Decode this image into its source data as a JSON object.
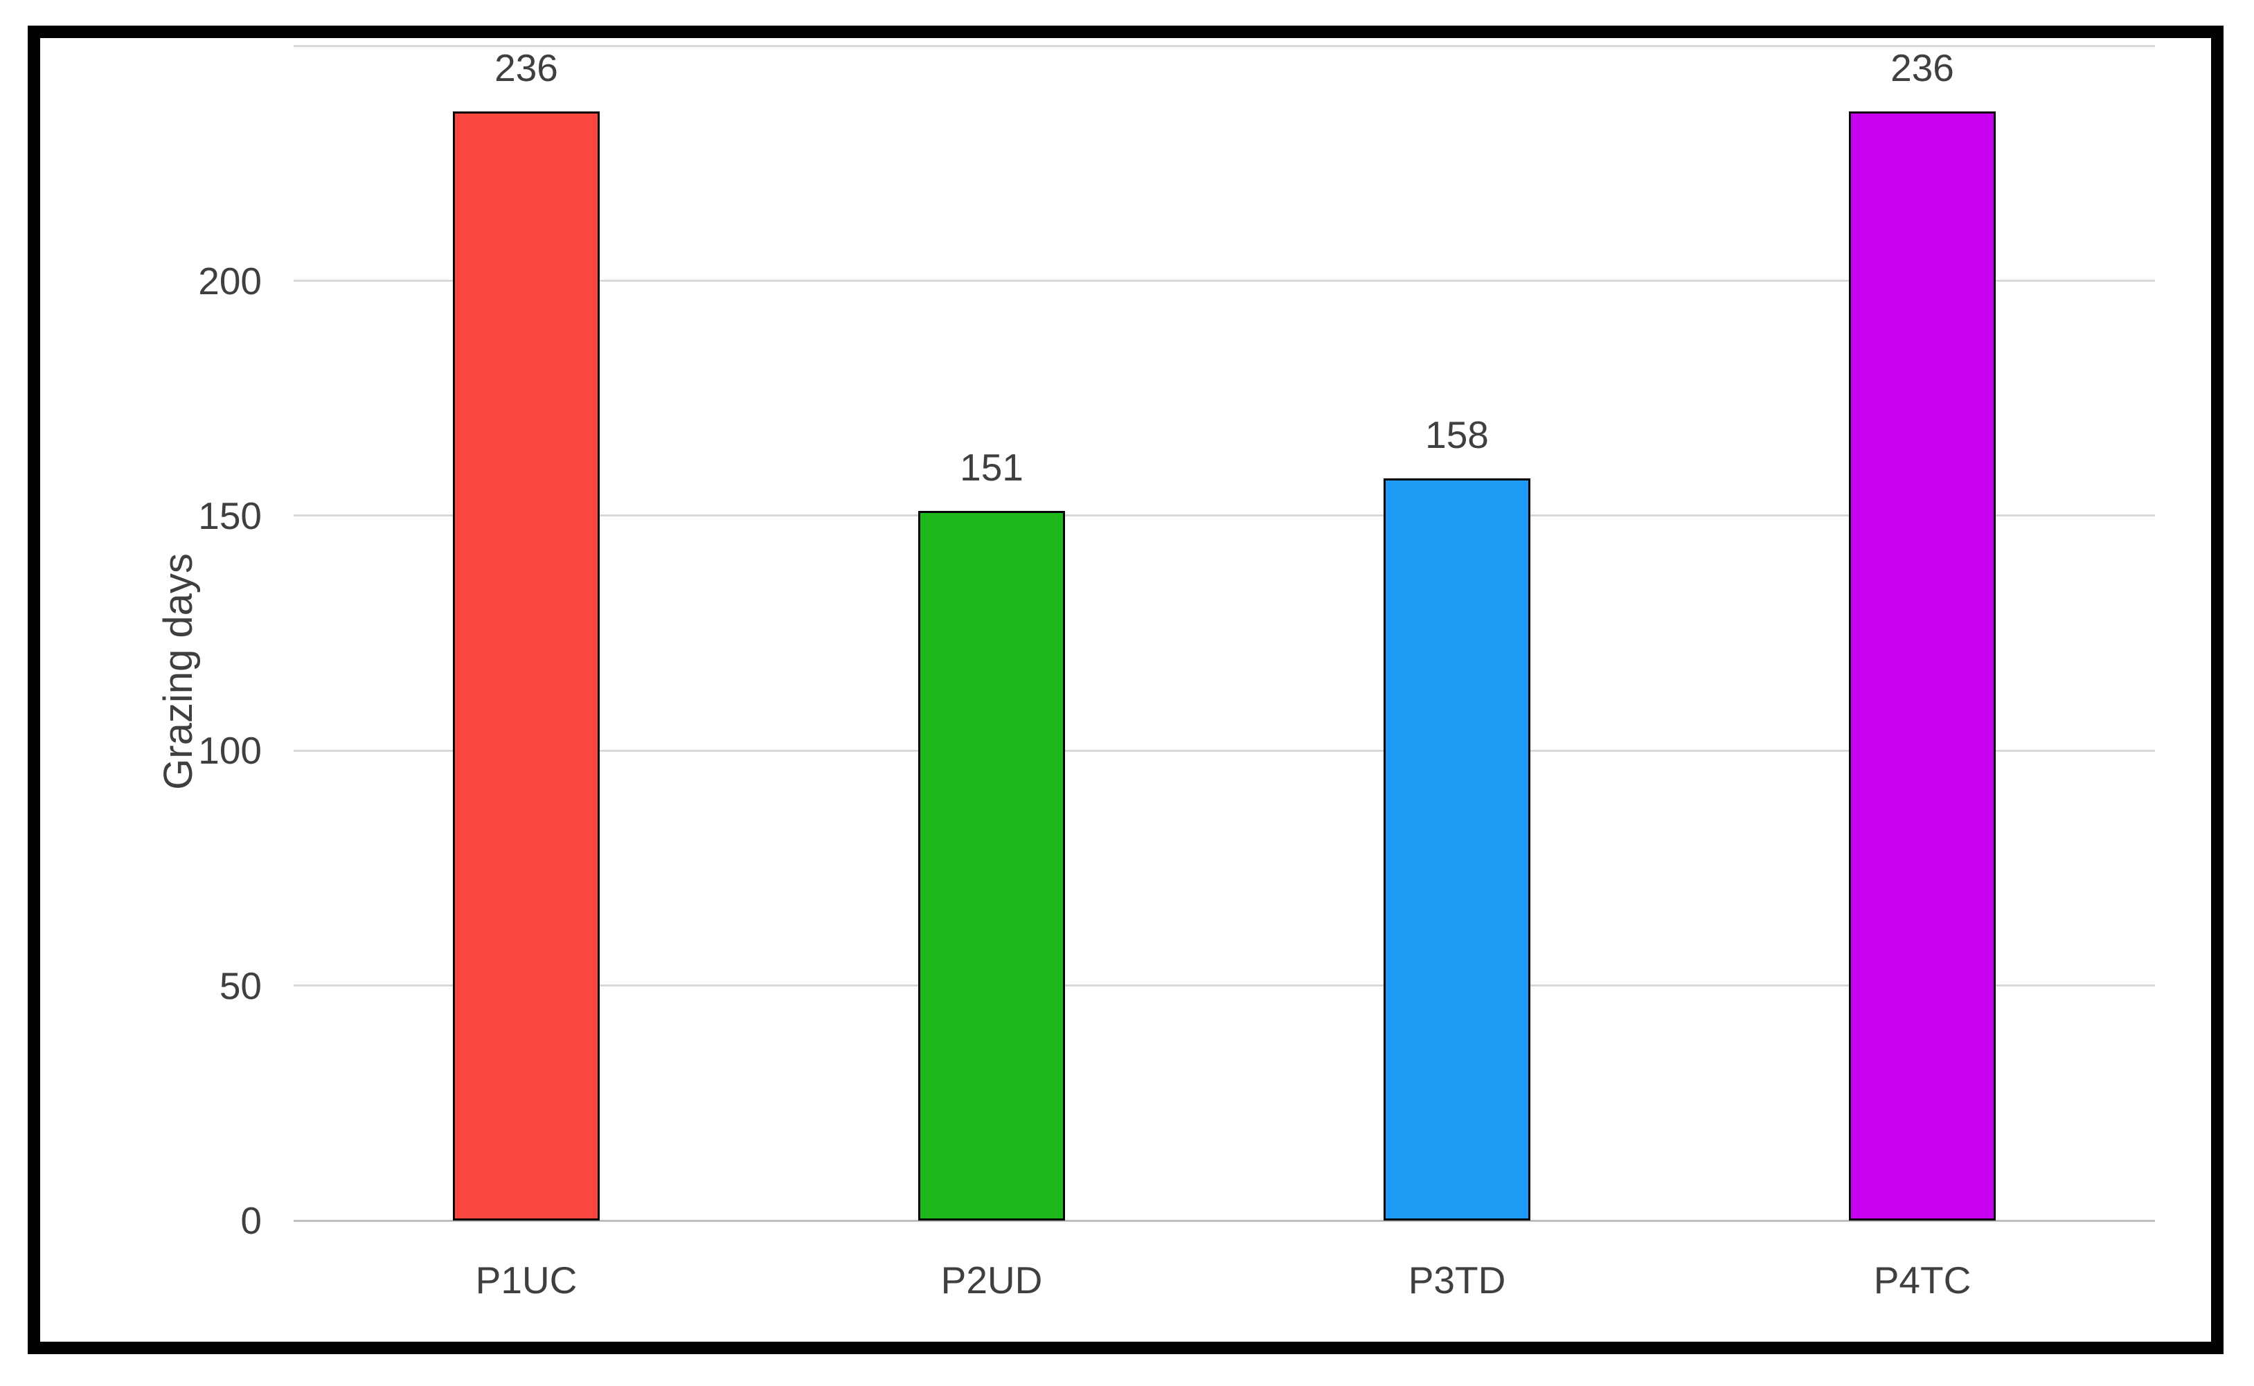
{
  "chart_data": {
    "type": "bar",
    "categories": [
      "P1UC",
      "P2UD",
      "P3TD",
      "P4TC"
    ],
    "values": [
      236,
      151,
      158,
      236
    ],
    "data_labels": [
      "236",
      "151",
      "158",
      "236"
    ],
    "bar_colors": [
      "#F9463F",
      "#1CB81C",
      "#1E9BF5",
      "#C800F0"
    ],
    "title": "",
    "xlabel": "",
    "ylabel": "Grazing days",
    "ylim": [
      0,
      250
    ],
    "yticks": [
      0,
      50,
      100,
      150,
      200
    ],
    "gridline_values": [
      50,
      100,
      150,
      200,
      250
    ],
    "grid": "horizontal",
    "legend": "none",
    "bar_border_color": "#000000",
    "grid_color": "#D9D9D9",
    "axis_line_color": "#BFBFBF",
    "label_color": "#3F3F3F",
    "frame_color": "#000000",
    "background": "#FFFFFF"
  }
}
